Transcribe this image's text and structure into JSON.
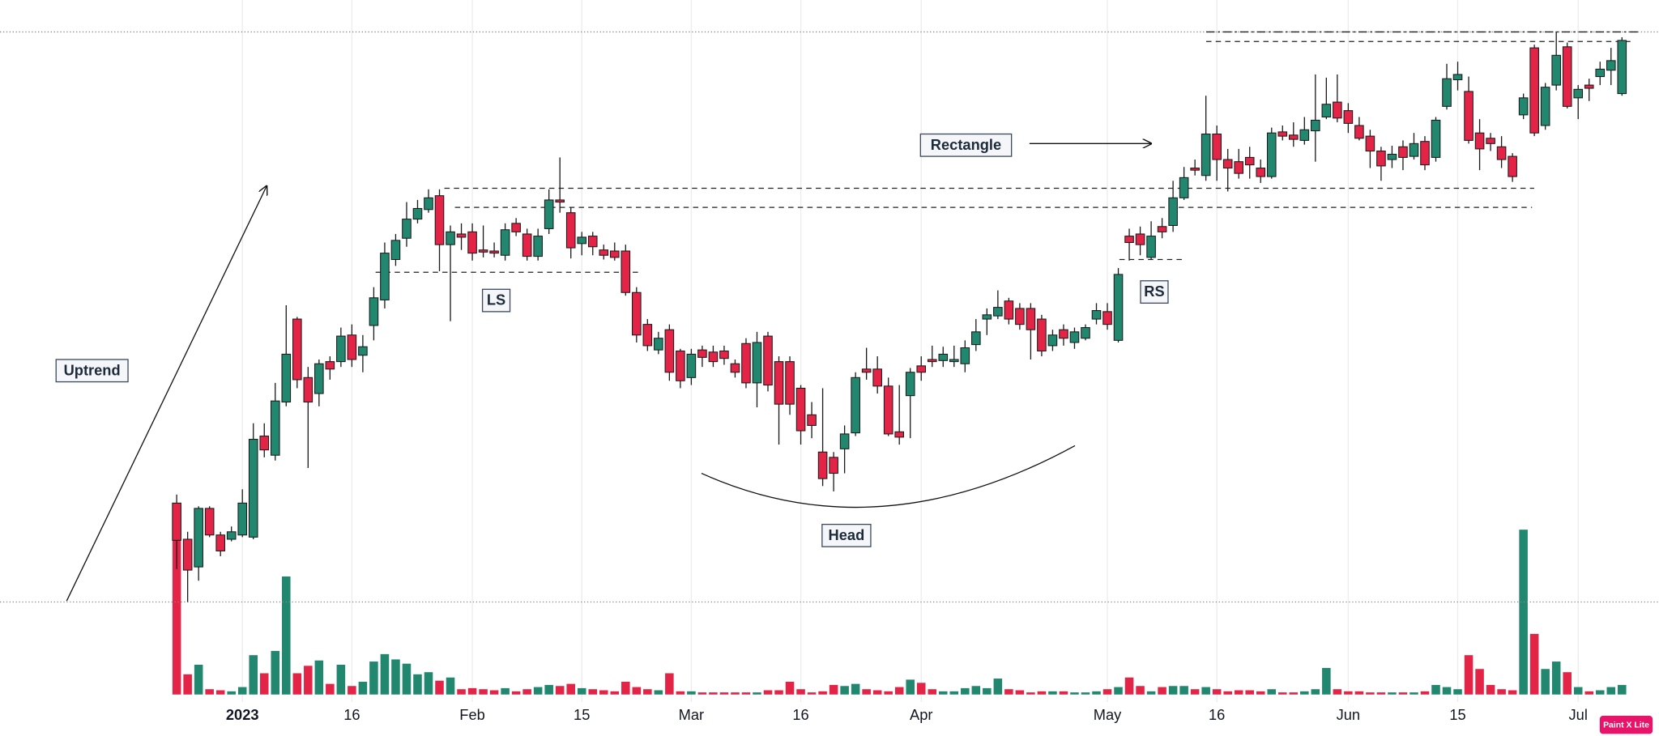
{
  "chart_data": {
    "type": "candlestick",
    "up_color": "#22876f",
    "down_color": "#e42446",
    "ylim": [
      -39,
      653
    ],
    "categories": [
      null,
      null,
      null,
      null,
      null,
      null,
      "2023",
      null,
      null,
      null,
      null,
      null,
      null,
      null,
      null,
      null,
      "16",
      null,
      null,
      null,
      null,
      null,
      null,
      null,
      null,
      null,
      null,
      "Feb",
      null,
      null,
      null,
      null,
      null,
      null,
      null,
      null,
      null,
      "15",
      null,
      null,
      null,
      null,
      null,
      null,
      null,
      null,
      null,
      "Mar",
      null,
      null,
      null,
      null,
      null,
      null,
      null,
      null,
      null,
      "16",
      null,
      null,
      null,
      null,
      null,
      null,
      null,
      null,
      null,
      null,
      "Apr",
      null,
      null,
      null,
      null,
      null,
      null,
      null,
      null,
      null,
      null,
      null,
      null,
      null,
      null,
      null,
      null,
      "May",
      null,
      null,
      null,
      null,
      null,
      null,
      null,
      null,
      null,
      "16",
      null,
      null,
      null,
      null,
      null,
      null,
      null,
      null,
      null,
      null,
      null,
      "Jun",
      null,
      null,
      null,
      null,
      null,
      null,
      null,
      null,
      null,
      "15",
      null,
      null,
      null,
      null,
      null,
      null,
      null,
      null,
      null,
      null,
      "Jul",
      null,
      null,
      null,
      null
    ],
    "open": [
      180,
      146,
      120,
      175,
      150,
      146,
      150,
      148,
      243,
      225,
      275,
      353,
      298,
      283,
      313,
      313,
      338,
      319,
      347,
      371,
      409,
      429,
      447,
      456,
      469,
      423,
      433,
      435,
      418,
      417,
      413,
      443,
      433,
      412,
      438,
      465,
      453,
      424,
      431,
      418,
      417,
      417,
      378,
      348,
      324,
      343,
      323,
      298,
      324,
      322,
      323,
      311,
      330,
      293,
      337,
      313,
      313,
      288,
      263,
      228,
      223,
      231,
      246,
      306,
      306,
      290,
      247,
      281,
      309,
      315,
      314,
      313,
      311,
      329,
      353,
      356,
      370,
      363,
      363,
      353,
      328,
      343,
      331,
      335,
      353,
      360,
      333,
      431,
      433,
      411,
      440,
      441,
      467,
      495,
      488,
      527,
      503,
      501,
      505,
      495,
      487,
      529,
      526,
      521,
      530,
      543,
      557,
      549,
      535,
      525,
      511,
      503,
      515,
      506,
      520,
      505,
      553,
      578,
      567,
      528,
      523,
      515,
      506,
      545,
      608,
      535,
      573,
      609,
      561,
      573,
      581,
      587,
      565
    ],
    "high": [
      188,
      153,
      177,
      177,
      153,
      158,
      193,
      255,
      255,
      293,
      366,
      355,
      308,
      315,
      318,
      345,
      348,
      338,
      383,
      425,
      433,
      463,
      465,
      475,
      475,
      441,
      443,
      443,
      441,
      425,
      443,
      448,
      438,
      438,
      475,
      505,
      458,
      435,
      435,
      423,
      425,
      423,
      383,
      353,
      341,
      348,
      325,
      325,
      328,
      328,
      328,
      315,
      335,
      341,
      341,
      318,
      318,
      291,
      275,
      288,
      228,
      253,
      303,
      326,
      318,
      298,
      291,
      307,
      318,
      328,
      327,
      328,
      333,
      353,
      363,
      380,
      373,
      368,
      368,
      357,
      343,
      348,
      345,
      348,
      368,
      368,
      401,
      438,
      440,
      445,
      448,
      483,
      496,
      503,
      563,
      535,
      513,
      513,
      515,
      503,
      533,
      535,
      538,
      543,
      583,
      580,
      583,
      556,
      543,
      531,
      515,
      516,
      521,
      528,
      525,
      543,
      593,
      595,
      581,
      541,
      528,
      525,
      509,
      565,
      611,
      575,
      623,
      613,
      573,
      579,
      595,
      608,
      618
    ],
    "low": [
      118,
      87,
      107,
      148,
      130,
      144,
      148,
      146,
      223,
      220,
      271,
      288,
      213,
      271,
      296,
      308,
      308,
      303,
      333,
      363,
      403,
      421,
      443,
      453,
      398,
      351,
      418,
      408,
      411,
      411,
      408,
      431,
      408,
      408,
      433,
      453,
      410,
      413,
      413,
      409,
      408,
      375,
      331,
      323,
      320,
      295,
      288,
      291,
      308,
      308,
      310,
      298,
      288,
      270,
      285,
      235,
      263,
      235,
      241,
      196,
      191,
      208,
      243,
      296,
      283,
      243,
      235,
      241,
      295,
      308,
      308,
      308,
      303,
      323,
      338,
      353,
      348,
      343,
      315,
      318,
      323,
      328,
      325,
      333,
      348,
      343,
      331,
      408,
      413,
      409,
      429,
      435,
      465,
      488,
      483,
      483,
      473,
      485,
      485,
      481,
      485,
      521,
      515,
      517,
      501,
      541,
      538,
      528,
      521,
      495,
      483,
      495,
      493,
      503,
      493,
      501,
      550,
      568,
      518,
      493,
      511,
      495,
      482,
      541,
      525,
      531,
      568,
      551,
      541,
      558,
      573,
      573,
      563
    ],
    "close": [
      145,
      117,
      175,
      150,
      135,
      153,
      180,
      240,
      230,
      276,
      320,
      296,
      275,
      311,
      306,
      337,
      315,
      327,
      373,
      415,
      427,
      447,
      457,
      467,
      423,
      435,
      430,
      415,
      416,
      415,
      437,
      435,
      412,
      431,
      465,
      463,
      420,
      430,
      421,
      413,
      411,
      378,
      338,
      328,
      335,
      303,
      295,
      320,
      317,
      313,
      316,
      303,
      293,
      331,
      291,
      273,
      273,
      248,
      253,
      203,
      208,
      245,
      298,
      303,
      290,
      245,
      242,
      303,
      303,
      313,
      320,
      315,
      326,
      341,
      357,
      364,
      353,
      348,
      343,
      323,
      338,
      335,
      341,
      345,
      361,
      348,
      395,
      425,
      423,
      431,
      435,
      467,
      486,
      493,
      527,
      503,
      495,
      490,
      498,
      487,
      528,
      525,
      522,
      531,
      540,
      555,
      542,
      537,
      523,
      511,
      497,
      508,
      505,
      518,
      498,
      540,
      579,
      583,
      521,
      513,
      518,
      503,
      487,
      561,
      528,
      571,
      601,
      553,
      569,
      570,
      588,
      596,
      615
    ],
    "volume": [
      180,
      19,
      28,
      5,
      4,
      3,
      7,
      37,
      20,
      41,
      111,
      20,
      27,
      32,
      10,
      28,
      8,
      12,
      31,
      38,
      33,
      29,
      19,
      21,
      13,
      16,
      5,
      6,
      5,
      4,
      6,
      3,
      5,
      7,
      9,
      8,
      10,
      6,
      5,
      4,
      3,
      12,
      7,
      5,
      4,
      20,
      3,
      3,
      2,
      2,
      2,
      2,
      2,
      2,
      4,
      4,
      12,
      5,
      2,
      3,
      9,
      8,
      10,
      5,
      4,
      3,
      7,
      14,
      11,
      5,
      3,
      3,
      6,
      8,
      6,
      15,
      5,
      4,
      2,
      3,
      3,
      3,
      2,
      2,
      3,
      5,
      7,
      16,
      8,
      3,
      7,
      8,
      8,
      5,
      7,
      5,
      3,
      4,
      4,
      3,
      5,
      2,
      2,
      3,
      5,
      25,
      5,
      3,
      3,
      2,
      2,
      2,
      2,
      2,
      3,
      9,
      7,
      5,
      37,
      24,
      9,
      5,
      4,
      155,
      57,
      24,
      31,
      21,
      7,
      3,
      4,
      7,
      9
    ],
    "annotations": [
      "Uptrend",
      "LS",
      "Head",
      "RS",
      "Rectangle"
    ]
  },
  "watermark": "Paint X Lite"
}
